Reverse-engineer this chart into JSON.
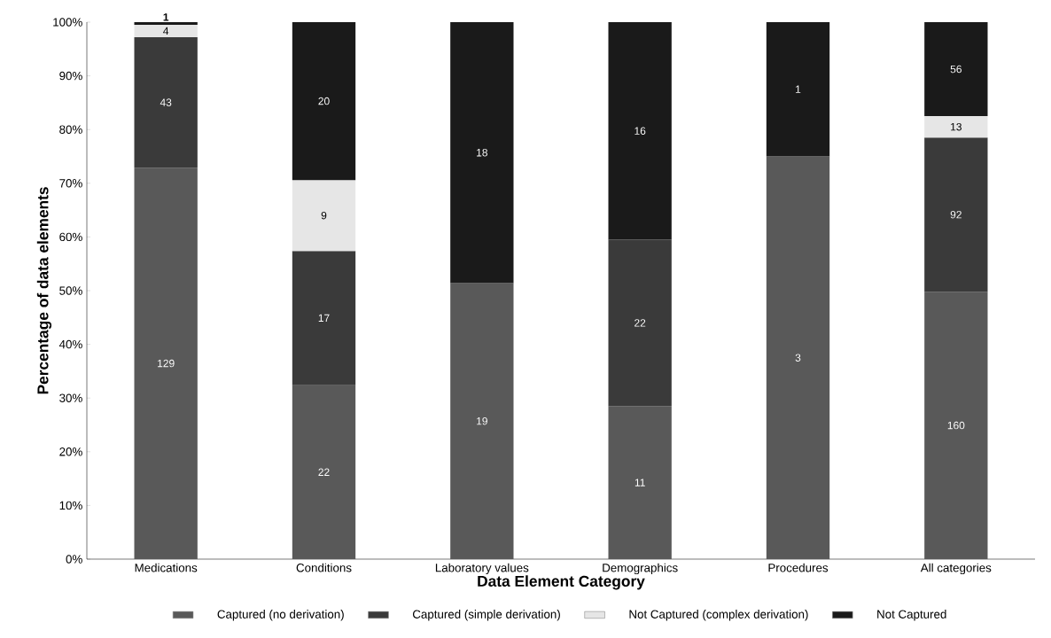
{
  "chart_data": {
    "type": "bar",
    "stacked": true,
    "xlabel": "Data Element Category",
    "ylabel": "Percentage of data elements",
    "categories": [
      "Medications",
      "Conditions",
      "Laboratory values",
      "Demographics",
      "Procedures",
      "All categories"
    ],
    "series": [
      {
        "name": "Captured (no derivation)",
        "color": "#595959",
        "values": [
          72.9,
          32.4,
          51.4,
          28.5,
          75.0,
          49.8
        ]
      },
      {
        "name": "Captured (simple derivation)",
        "color": "#3a3a3a",
        "values": [
          24.3,
          25.0,
          null,
          31.0,
          null,
          28.7
        ]
      },
      {
        "name": "Not Captured (complex derivation)",
        "color": "#e6e6e6",
        "values": [
          2.3,
          13.2,
          null,
          null,
          null,
          4.0
        ]
      },
      {
        "name": "Not Captured",
        "color": "#1a1a1a",
        "values": [
          0.5,
          29.4,
          48.6,
          40.5,
          25.0,
          17.5
        ]
      }
    ],
    "annotations": [
      "129",
      "43",
      "4",
      "1",
      "22",
      "17",
      "9",
      "20",
      "19",
      "18",
      "11",
      "22",
      "16",
      "3",
      "1",
      "160",
      "92",
      "13",
      "56"
    ],
    "ylim": [
      0,
      100
    ],
    "yticks": [
      {
        "value": 0,
        "label": "0%"
      },
      {
        "value": 10,
        "label": "10%"
      },
      {
        "value": 20,
        "label": "20%"
      },
      {
        "value": 30,
        "label": "30%"
      },
      {
        "value": 40,
        "label": "40%"
      },
      {
        "value": 50,
        "label": "50%"
      },
      {
        "value": 60,
        "label": "60%"
      },
      {
        "value": 70,
        "label": "70%"
      },
      {
        "value": 80,
        "label": "80%"
      },
      {
        "value": 90,
        "label": "90%"
      },
      {
        "value": 100,
        "label": "100%"
      }
    ],
    "grid": false,
    "legend": "bottom"
  }
}
